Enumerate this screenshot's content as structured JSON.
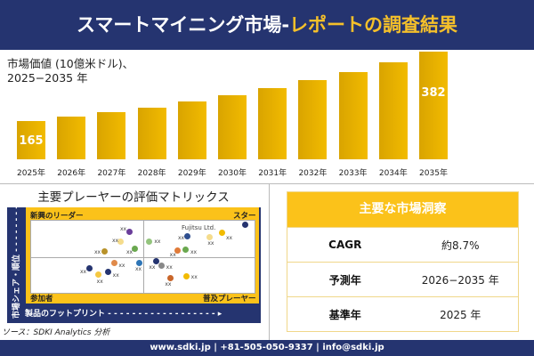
{
  "header": {
    "title_main": "スマートマイニング市場-",
    "title_accent": "レポートの調査結果"
  },
  "chart_data": {
    "type": "bar",
    "title": "市場価値 (10億米ドル)、",
    "subtitle": "2025−2035 年",
    "categories": [
      "2025年",
      "2026年",
      "2027年",
      "2028年",
      "2029年",
      "2030年",
      "2031年",
      "2032年",
      "2033年",
      "2034年",
      "2035年"
    ],
    "values": [
      165,
      179,
      193,
      207,
      226,
      246,
      268,
      293,
      318,
      349,
      382
    ],
    "data_labels": {
      "0": "165",
      "10": "382"
    },
    "bar_color": "#f2bb00"
  },
  "matrix": {
    "title": "主要プレーヤーの評価マトリックス",
    "quadrants": {
      "top_left": "新興のリーダー",
      "top_right": "スター",
      "bottom_left": "参加者",
      "bottom_right": "普及プレーヤー"
    },
    "x_label": "製品のフットプリント",
    "y_label": "市場シェア・順位",
    "highlight_label": "Fujitsu Ltd.",
    "point_label": "xx",
    "colors": [
      "#6a3d9a",
      "#f5dc8c",
      "#b8922a",
      "#6aa84f",
      "#e08a4a",
      "#253470",
      "#f5c842",
      "#253470",
      "#2e75b6",
      "#253470",
      "#888888",
      "#c9662a",
      "#f2bb00",
      "#93c47d",
      "#e07b39",
      "#6aa84f",
      "#2f4f8f",
      "#f5dc8c",
      "#f2bb00",
      "#253470"
    ]
  },
  "source": "ソース：SDKI Analytics 分析",
  "insights": {
    "title": "主要な市場洞察",
    "rows": [
      {
        "key": "CAGR",
        "value": "約8.7%"
      },
      {
        "key": "予測年",
        "value": "2026−2035 年"
      },
      {
        "key": "基準年",
        "value": "2025 年"
      }
    ]
  },
  "footer": "www.sdki.jp | +81-505-050-9337 | info@sdki.jp"
}
